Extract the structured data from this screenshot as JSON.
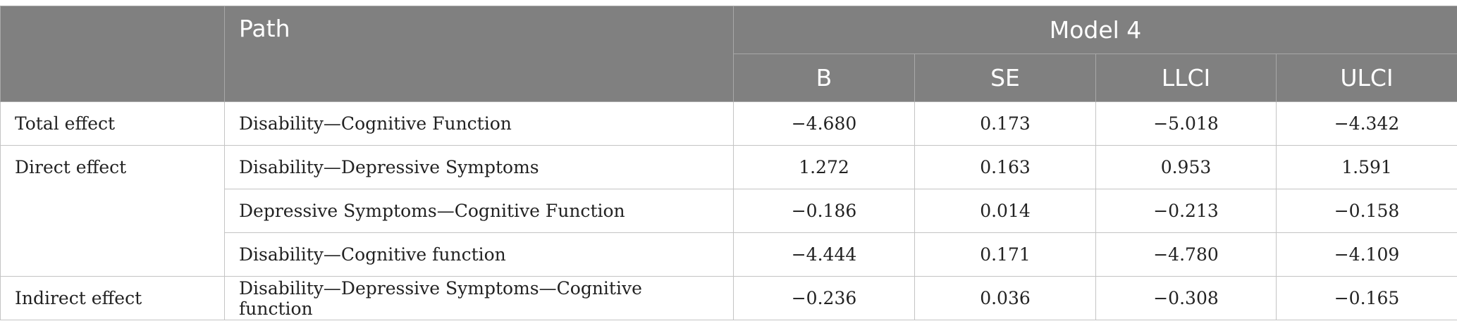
{
  "header": {
    "col0": "",
    "path": "Path",
    "model": "Model 4",
    "sub": [
      "B",
      "SE",
      "LLCI",
      "ULCI"
    ]
  },
  "groups": [
    {
      "label": "Total effect",
      "rows": [
        {
          "path": "Disability—Cognitive Function",
          "b": "−4.680",
          "se": "0.173",
          "llci": "−5.018",
          "ulci": "−4.342"
        }
      ]
    },
    {
      "label": "Direct effect",
      "rows": [
        {
          "path": "Disability—Depressive Symptoms",
          "b": "1.272",
          "se": "0.163",
          "llci": "0.953",
          "ulci": "1.591"
        },
        {
          "path": "Depressive Symptoms—Cognitive Function",
          "b": "−0.186",
          "se": "0.014",
          "llci": "−0.213",
          "ulci": "−0.158"
        },
        {
          "path": "Disability—Cognitive function",
          "b": "−4.444",
          "se": "0.171",
          "llci": "−4.780",
          "ulci": "−4.109"
        }
      ]
    },
    {
      "label": "Indirect effect",
      "rows": [
        {
          "path": "Disability—Depressive Symptoms—Cognitive function",
          "b": "−0.236",
          "se": "0.036",
          "llci": "−0.308",
          "ulci": "−0.165"
        }
      ]
    }
  ]
}
